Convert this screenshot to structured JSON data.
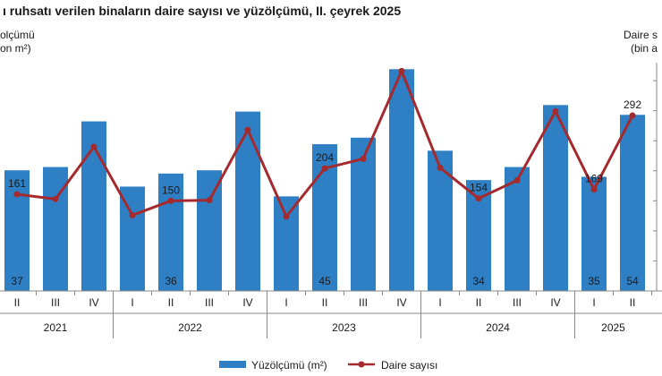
{
  "chart_data": {
    "type": "bar",
    "title": "ı ruhsatı verilen binaların daire sayısı ve yüzölçümü, II. çeyrek 2025",
    "left_axis_title": [
      "olçümü",
      "on m²)"
    ],
    "right_axis_title": [
      "Daire s",
      "(bin a"
    ],
    "categories": [
      "II",
      "III",
      "IV",
      "I",
      "II",
      "III",
      "IV",
      "I",
      "II",
      "III",
      "IV",
      "I",
      "II",
      "III",
      "IV",
      "I",
      "II"
    ],
    "years": [
      {
        "label": "2021",
        "start": 0,
        "end": 2
      },
      {
        "label": "2022",
        "start": 3,
        "end": 6
      },
      {
        "label": "2023",
        "start": 7,
        "end": 10
      },
      {
        "label": "2024",
        "start": 11,
        "end": 14
      },
      {
        "label": "2025",
        "start": 15,
        "end": 16
      }
    ],
    "series": [
      {
        "name": "Yüzölçümü (m²)",
        "type": "bar",
        "axis": "left",
        "color": "#2e7fc4",
        "values": [
          37,
          38,
          52,
          32,
          36,
          37,
          55,
          29,
          45,
          47,
          68,
          43,
          34,
          38,
          57,
          35,
          54
        ],
        "labels": [
          "37",
          "",
          "",
          "",
          "36",
          "",
          "",
          "",
          "45",
          "",
          "",
          "",
          "34",
          "",
          "",
          "35",
          "54"
        ]
      },
      {
        "name": "Daire sayısı",
        "type": "line",
        "axis": "right",
        "color": "#a52a2e",
        "values": [
          161,
          153,
          240,
          126,
          150,
          151,
          268,
          124,
          204,
          220,
          366,
          205,
          154,
          184,
          299,
          169,
          292
        ],
        "labels": [
          "161",
          "",
          "",
          "",
          "150",
          "",
          "",
          "",
          "204",
          "",
          "",
          "",
          "154",
          "",
          "",
          "169",
          "292"
        ]
      }
    ],
    "left_ylim": [
      0,
      70
    ],
    "right_ylim": [
      0,
      380
    ],
    "grid": false,
    "legend_position": "bottom"
  }
}
